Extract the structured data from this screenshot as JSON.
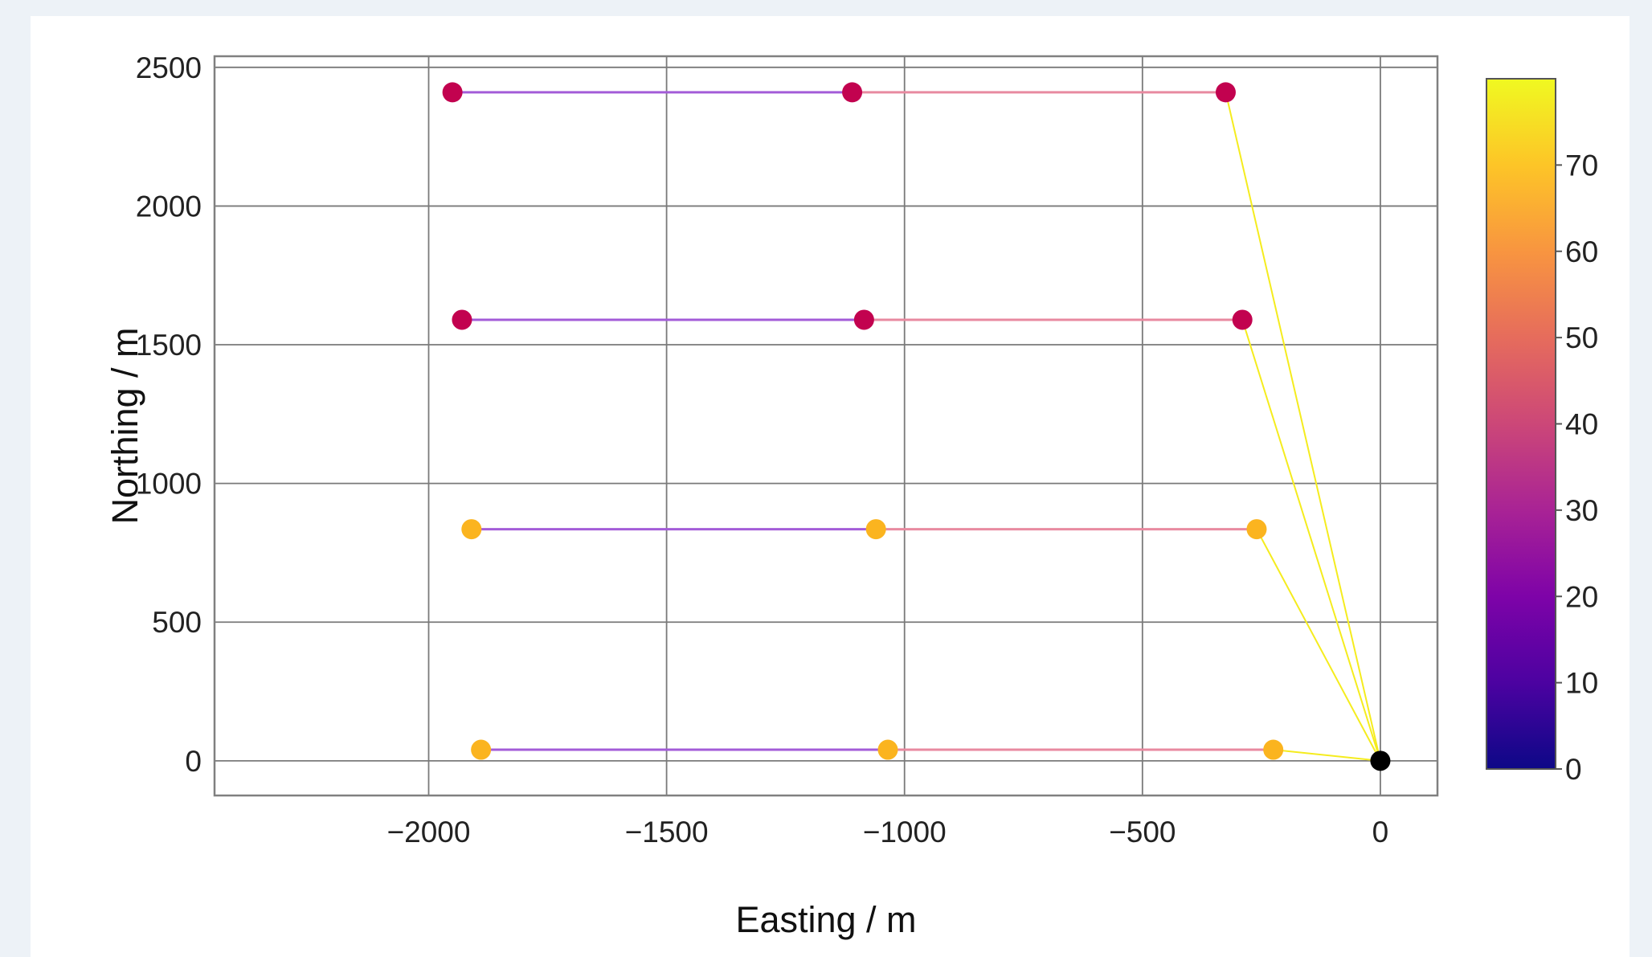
{
  "chart_data": {
    "type": "line",
    "xlabel": "Easting / m",
    "ylabel": "Northing / m",
    "xlim": [
      -2450,
      120
    ],
    "ylim": [
      -125,
      2540
    ],
    "x_ticks": [
      -2000,
      -1500,
      -1000,
      -500,
      0
    ],
    "y_ticks": [
      0,
      500,
      1000,
      1500,
      2000,
      2500
    ],
    "x_tick_labels": [
      "−2000",
      "−1500",
      "−1000",
      "−500",
      "0"
    ],
    "y_tick_labels": [
      "0",
      "500",
      "1000",
      "1500",
      "2000",
      "2500"
    ],
    "grid": true,
    "colorbar": {
      "colormap": "plasma",
      "range": [
        0,
        80
      ],
      "ticks": [
        0,
        10,
        20,
        30,
        40,
        50,
        60,
        70
      ],
      "tick_labels": [
        "0",
        "10",
        "20",
        "30",
        "40",
        "50",
        "60",
        "70"
      ]
    },
    "origin": {
      "x": 0,
      "y": 0,
      "color": "#000000"
    },
    "lines": [
      {
        "y": 2410,
        "points_x": [
          -1950,
          -1110,
          -325
        ],
        "point_color": "#c2024f"
      },
      {
        "y": 1590,
        "points_x": [
          -1930,
          -1085,
          -290
        ],
        "point_color": "#c2024f"
      },
      {
        "y": 835,
        "points_x": [
          -1910,
          -1060,
          -260
        ],
        "point_color": "#fbb41f"
      },
      {
        "y": 40,
        "points_x": [
          -1890,
          -1035,
          -225
        ],
        "point_color": "#fbb41f"
      }
    ],
    "segment_colors": {
      "inner": "#a35cd8",
      "outer": "#e88aa0",
      "link": "#f5ec1e"
    }
  }
}
